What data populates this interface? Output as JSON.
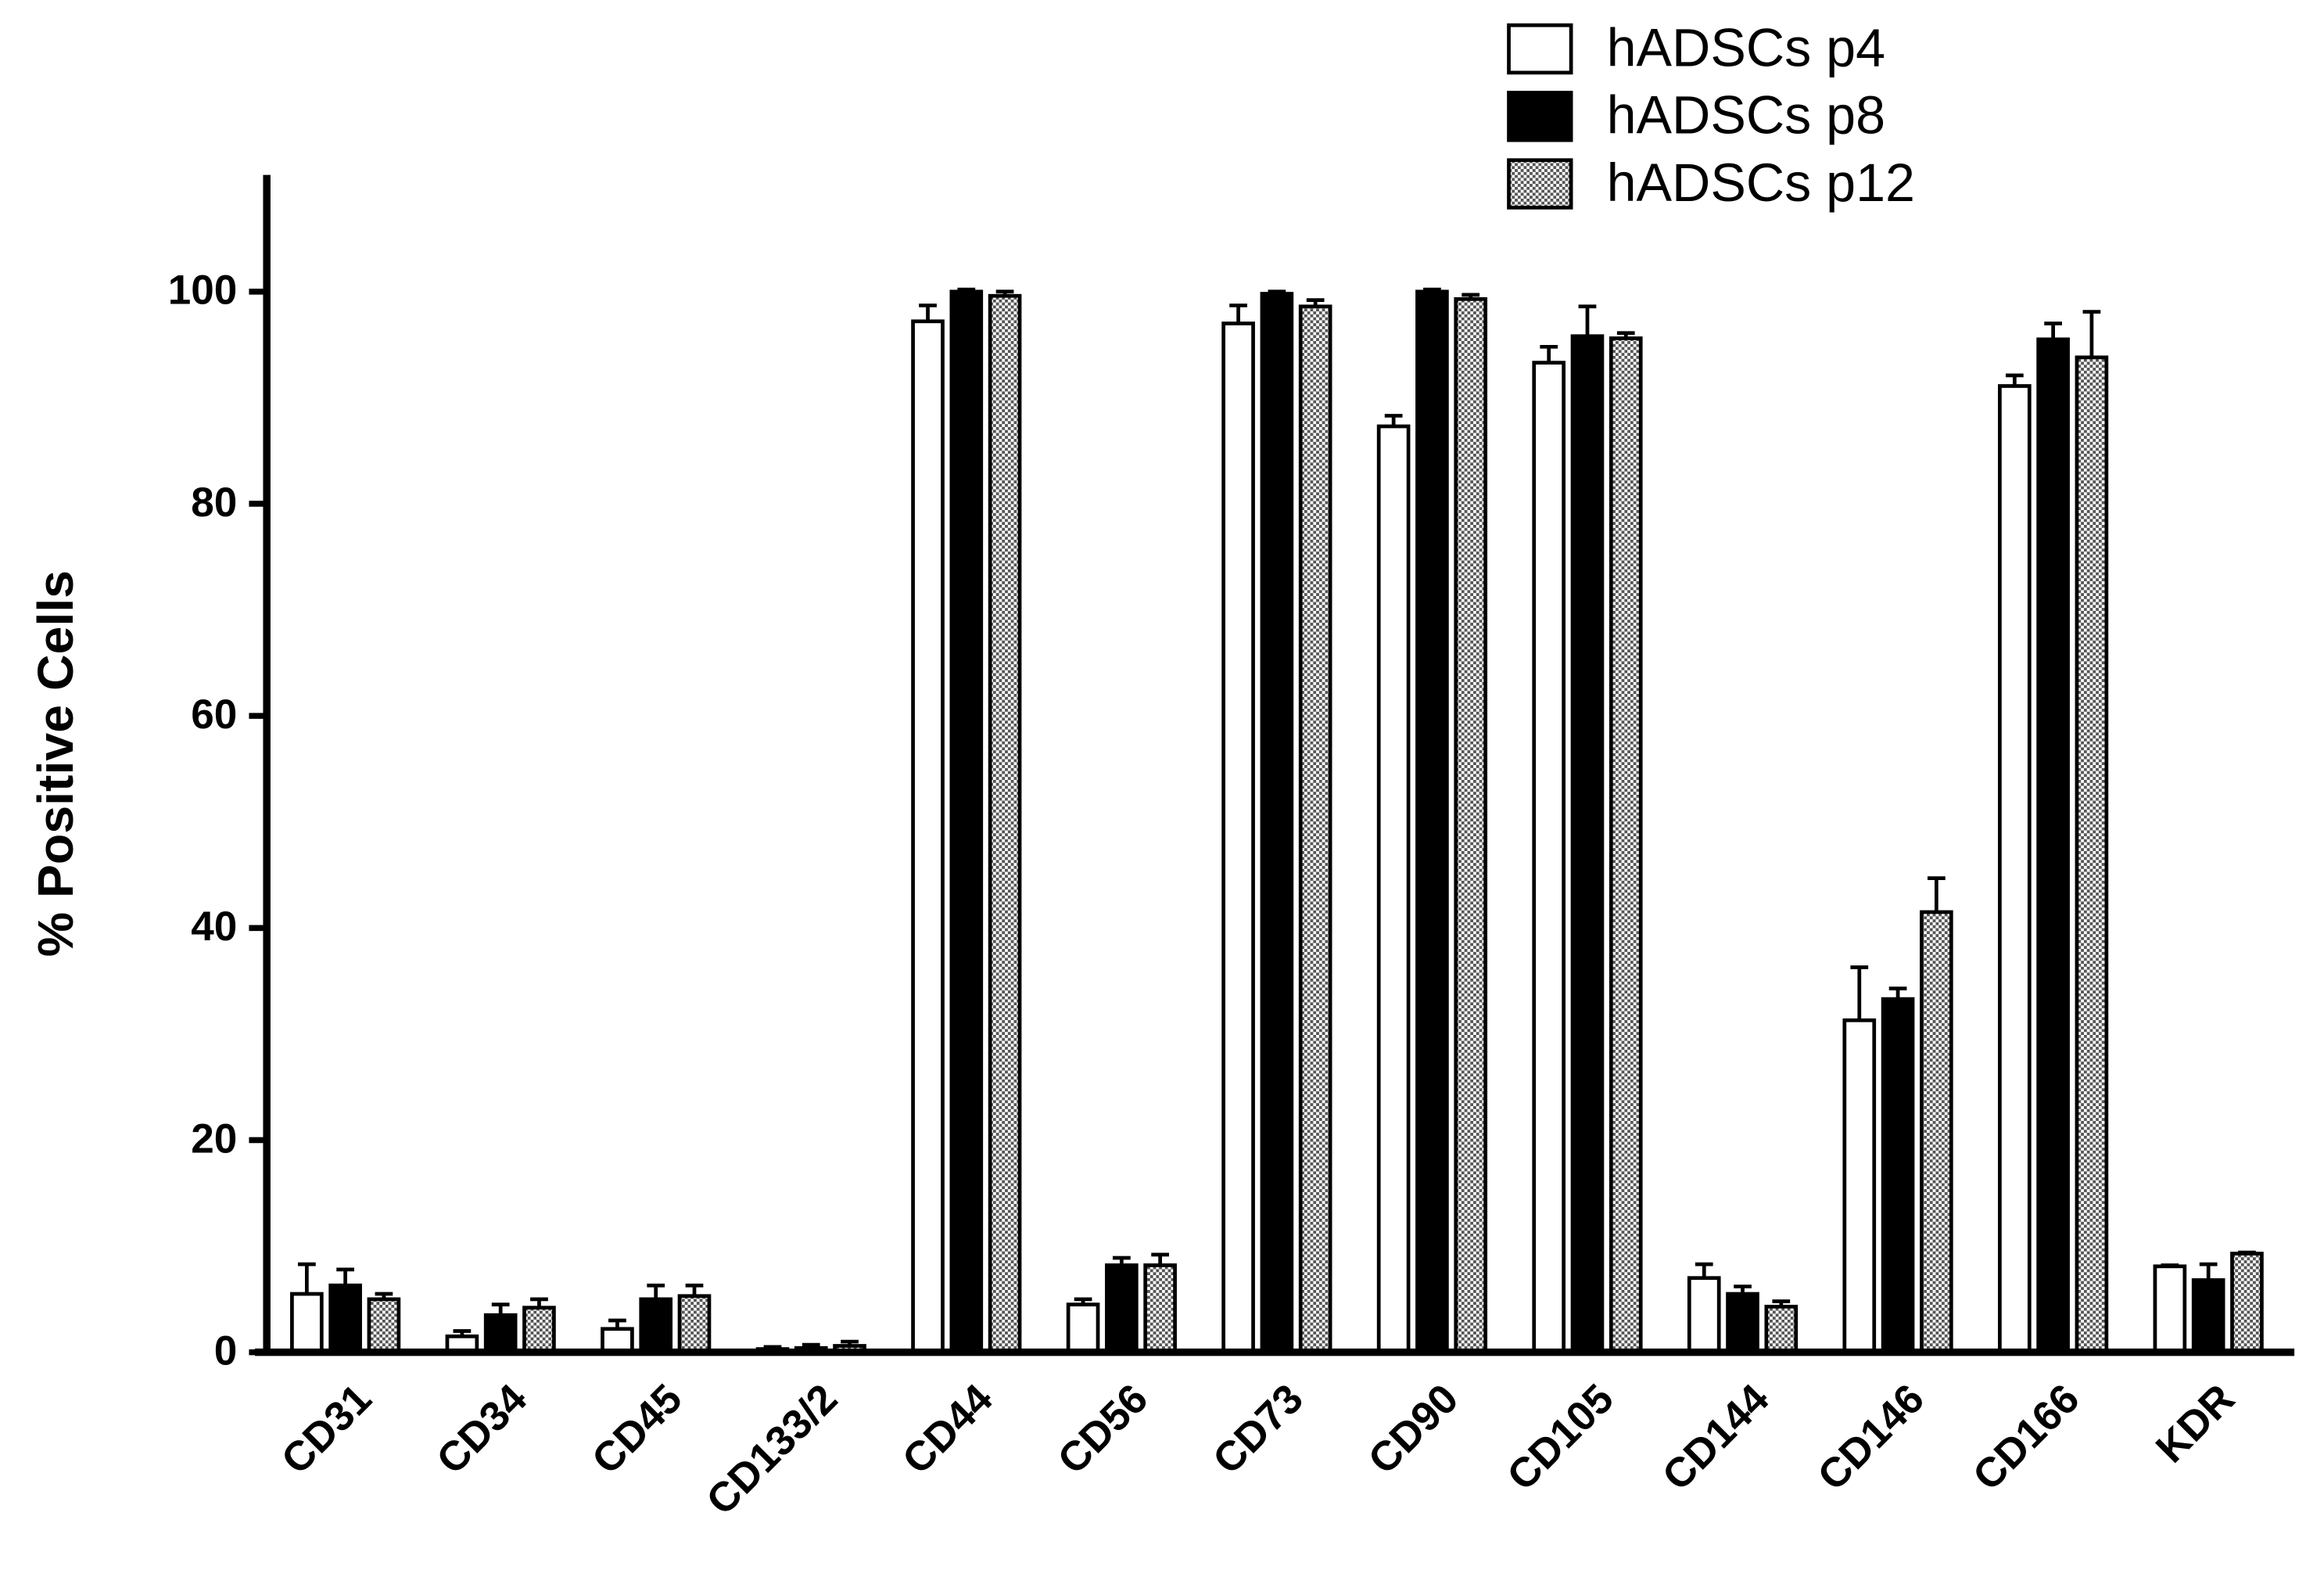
{
  "chart_data": {
    "type": "bar",
    "y_label": "% Positive Cells",
    "categories": [
      "CD31",
      "CD34",
      "CD45",
      "CD133/2",
      "CD44",
      "CD56",
      "CD73",
      "CD90",
      "CD105",
      "CD144",
      "CD146",
      "CD166",
      "KDR"
    ],
    "series": [
      {
        "name": "hADSCs p4",
        "color": "#ffffff",
        "values": [
          5.5,
          1.5,
          2.2,
          0.3,
          97.2,
          4.5,
          97,
          87.3,
          93.3,
          7,
          31.3,
          91.1,
          8.1
        ],
        "errors": [
          2.8,
          0.5,
          0.8,
          0.2,
          1.5,
          0.5,
          1.7,
          1,
          1.5,
          1.3,
          5,
          1,
          0.1
        ]
      },
      {
        "name": "hADSCs p8",
        "color": "#000000",
        "values": [
          6.3,
          3.5,
          5,
          0.4,
          100,
          8.2,
          99.8,
          100,
          95.8,
          5.5,
          33.3,
          95.5,
          6.8
        ],
        "errors": [
          1.5,
          1,
          1.3,
          0.3,
          0.2,
          0.7,
          0.2,
          0.2,
          2.8,
          0.7,
          1,
          1.5,
          1.5
        ]
      },
      {
        "name": "hADSCs p12",
        "color": "#9a9a9a",
        "pattern": "checker",
        "values": [
          5,
          4.2,
          5.3,
          0.6,
          99.6,
          8.2,
          98.6,
          99.3,
          95.6,
          4.3,
          41.5,
          93.8,
          9.3
        ],
        "errors": [
          0.5,
          0.8,
          1,
          0.4,
          0.4,
          1,
          0.6,
          0.4,
          0.5,
          0.5,
          3.2,
          4.3,
          0.1
        ]
      }
    ],
    "ylim": [
      0,
      111
    ],
    "yticks": [
      0,
      20,
      40,
      60,
      80,
      100
    ],
    "grid": false,
    "legend": "top-right"
  }
}
